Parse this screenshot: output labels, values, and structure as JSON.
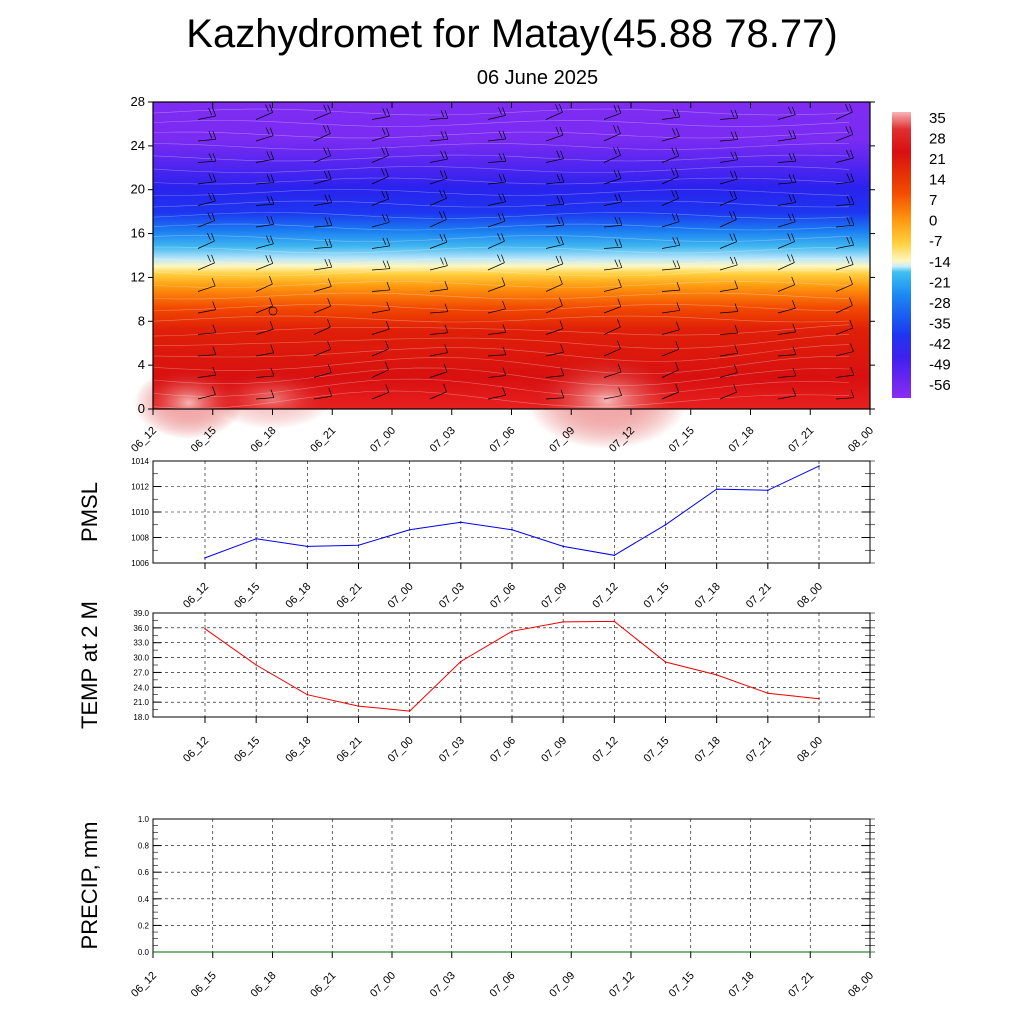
{
  "title": "Kazhydromet for Matay(45.88 78.77)",
  "subtitle": "06 June 2025",
  "chart_data": [
    {
      "type": "heatmap",
      "name": "temperature-profile",
      "ylim": [
        0,
        28
      ],
      "yticks": [
        "0",
        "4",
        "8",
        "12",
        "16",
        "20",
        "24",
        "28"
      ],
      "xtick_labels": [
        "06_12",
        "06_15",
        "06_18",
        "06_21",
        "07_00",
        "07_03",
        "07_06",
        "07_09",
        "07_12",
        "07_15",
        "07_18",
        "07_21",
        "08_00"
      ],
      "colorbar_labels": [
        "35",
        "28",
        "21",
        "14",
        "7",
        "0",
        "-7",
        "-14",
        "-21",
        "-28",
        "-35",
        "-42",
        "-49",
        "-56"
      ],
      "colorbar_range": [
        -63,
        38
      ],
      "colors": {
        "hot": "#f7b5b5",
        "red": "#d31010",
        "orange": "#ff6a00",
        "yellow": "#ffe066",
        "pale": "#fff7c0",
        "cyan": "#3fb6f0",
        "blue": "#1d36f0",
        "violet": "#7b2cf2"
      }
    },
    {
      "type": "line",
      "name": "pmsl",
      "ylabel": "PMSL",
      "ylim": [
        1006,
        1014
      ],
      "yticks": [
        "1006",
        "1008",
        "1010",
        "1012",
        "1014"
      ],
      "x": [
        "06_12",
        "06_15",
        "06_18",
        "06_21",
        "07_00",
        "07_03",
        "07_06",
        "07_09",
        "07_12",
        "07_15",
        "07_18",
        "07_21",
        "08_00"
      ],
      "values": [
        1006.4,
        1007.9,
        1007.3,
        1007.4,
        1008.6,
        1009.2,
        1008.6,
        1007.3,
        1006.6,
        1009.0,
        1011.8,
        1011.7,
        1013.6
      ],
      "color": "#0000ee",
      "grid": true
    },
    {
      "type": "line",
      "name": "temp-2m",
      "ylabel": "TEMP at 2 M",
      "ylim": [
        18.0,
        39.0
      ],
      "yticks": [
        "18.0",
        "21.0",
        "24.0",
        "27.0",
        "30.0",
        "33.0",
        "36.0",
        "39.0"
      ],
      "x": [
        "06_12",
        "06_15",
        "06_18",
        "06_21",
        "07_00",
        "07_03",
        "07_06",
        "07_09",
        "07_12",
        "07_15",
        "07_18",
        "07_21",
        "08_00"
      ],
      "values": [
        35.8,
        28.5,
        22.5,
        20.2,
        19.2,
        29.2,
        35.3,
        37.2,
        37.3,
        29.1,
        26.5,
        22.8,
        21.7
      ],
      "color": "#ee0000",
      "grid": true
    },
    {
      "type": "line",
      "name": "precip",
      "ylabel": "PRECIP, mm",
      "ylim": [
        0,
        1
      ],
      "yticks": [
        "0.0",
        "0.2",
        "0.4",
        "0.6",
        "0.8",
        "1.0"
      ],
      "x": [
        "06_12",
        "06_15",
        "06_18",
        "06_21",
        "07_00",
        "07_03",
        "07_06",
        "07_09",
        "07_12",
        "07_15",
        "07_18",
        "07_21",
        "08_00"
      ],
      "values": [
        0,
        0,
        0,
        0,
        0,
        0,
        0,
        0,
        0,
        0,
        0,
        0,
        0
      ],
      "color": "#006400",
      "grid": true
    }
  ]
}
